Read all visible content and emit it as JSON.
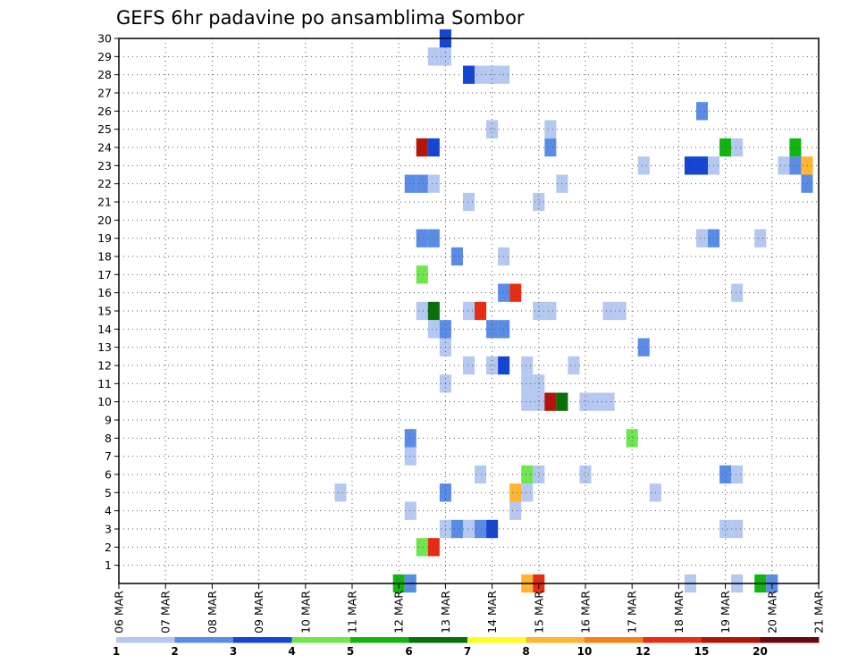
{
  "chart_data": {
    "type": "heatmap",
    "title": "GEFS 6hr padavine po ansamblima Sombor",
    "xlabel": "",
    "ylabel": "",
    "x_tick_labels": [
      "06 MAR",
      "07 MAR",
      "08 MAR",
      "09 MAR",
      "10 MAR",
      "11 MAR",
      "12 MAR",
      "13 MAR",
      "14 MAR",
      "15 MAR",
      "16 MAR",
      "17 MAR",
      "18 MAR",
      "19 MAR",
      "20 MAR",
      "21 MAR"
    ],
    "y_tick_labels": [
      "1",
      "2",
      "3",
      "4",
      "5",
      "6",
      "7",
      "8",
      "9",
      "10",
      "11",
      "12",
      "13",
      "14",
      "15",
      "16",
      "17",
      "18",
      "19",
      "20",
      "21",
      "22",
      "23",
      "24",
      "25",
      "26",
      "27",
      "28",
      "29",
      "30"
    ],
    "x_unit": "6-hour step from 06 MAR 00Z",
    "xlim": [
      0,
      60
    ],
    "ylim": [
      0,
      30
    ],
    "grid": true,
    "colorbar": {
      "labels": [
        "1",
        "2",
        "3",
        "4",
        "5",
        "6",
        "7",
        "8",
        "10",
        "12",
        "15",
        "20"
      ],
      "colors": [
        "#b4c8f0",
        "#5a8ce6",
        "#1446d2",
        "#6ee650",
        "#12b412",
        "#0a6e0a",
        "#ffff1e",
        "#ffb432",
        "#f58214",
        "#e62d14",
        "#b4140a",
        "#640a0a"
      ]
    },
    "cells": [
      {
        "t": 49,
        "m": 0,
        "c": 1
      },
      {
        "t": 53,
        "m": 0,
        "c": 1
      },
      {
        "t": 55,
        "m": 0,
        "c": 5
      },
      {
        "t": 56,
        "m": 0,
        "c": 2
      },
      {
        "t": 24,
        "m": 0,
        "c": 5
      },
      {
        "t": 25,
        "m": 0,
        "c": 2
      },
      {
        "t": 35,
        "m": 0,
        "c": 8
      },
      {
        "t": 36,
        "m": 0,
        "c": 10
      },
      {
        "t": 26,
        "m": 2,
        "c": 4
      },
      {
        "t": 27,
        "m": 2,
        "c": 10
      },
      {
        "t": 28,
        "m": 3,
        "c": 1
      },
      {
        "t": 29,
        "m": 3,
        "c": 2
      },
      {
        "t": 30,
        "m": 3,
        "c": 1
      },
      {
        "t": 31,
        "m": 3,
        "c": 2
      },
      {
        "t": 32,
        "m": 3,
        "c": 3
      },
      {
        "t": 52,
        "m": 3,
        "c": 1
      },
      {
        "t": 53,
        "m": 3,
        "c": 1
      },
      {
        "t": 25,
        "m": 4,
        "c": 1
      },
      {
        "t": 34,
        "m": 4,
        "c": 1
      },
      {
        "t": 19,
        "m": 5,
        "c": 1
      },
      {
        "t": 28,
        "m": 5,
        "c": 2
      },
      {
        "t": 34,
        "m": 5,
        "c": 8
      },
      {
        "t": 35,
        "m": 5,
        "c": 1
      },
      {
        "t": 46,
        "m": 5,
        "c": 1
      },
      {
        "t": 31,
        "m": 6,
        "c": 1
      },
      {
        "t": 35,
        "m": 6,
        "c": 4
      },
      {
        "t": 36,
        "m": 6,
        "c": 1
      },
      {
        "t": 40,
        "m": 6,
        "c": 1
      },
      {
        "t": 52,
        "m": 6,
        "c": 2
      },
      {
        "t": 53,
        "m": 6,
        "c": 1
      },
      {
        "t": 25,
        "m": 7,
        "c": 1
      },
      {
        "t": 25,
        "m": 8,
        "c": 2
      },
      {
        "t": 44,
        "m": 8,
        "c": 4
      },
      {
        "t": 35,
        "m": 10,
        "c": 1
      },
      {
        "t": 36,
        "m": 10,
        "c": 1
      },
      {
        "t": 37,
        "m": 10,
        "c": 11
      },
      {
        "t": 38,
        "m": 10,
        "c": 6
      },
      {
        "t": 40,
        "m": 10,
        "c": 1
      },
      {
        "t": 41,
        "m": 10,
        "c": 1
      },
      {
        "t": 42,
        "m": 10,
        "c": 1
      },
      {
        "t": 28,
        "m": 11,
        "c": 1
      },
      {
        "t": 35,
        "m": 11,
        "c": 1
      },
      {
        "t": 36,
        "m": 11,
        "c": 1
      },
      {
        "t": 30,
        "m": 12,
        "c": 1
      },
      {
        "t": 32,
        "m": 12,
        "c": 1
      },
      {
        "t": 33,
        "m": 12,
        "c": 3
      },
      {
        "t": 35,
        "m": 12,
        "c": 1
      },
      {
        "t": 39,
        "m": 12,
        "c": 1
      },
      {
        "t": 28,
        "m": 13,
        "c": 1
      },
      {
        "t": 45,
        "m": 13,
        "c": 2
      },
      {
        "t": 27,
        "m": 14,
        "c": 1
      },
      {
        "t": 28,
        "m": 14,
        "c": 2
      },
      {
        "t": 32,
        "m": 14,
        "c": 2
      },
      {
        "t": 33,
        "m": 14,
        "c": 2
      },
      {
        "t": 26,
        "m": 15,
        "c": 1
      },
      {
        "t": 27,
        "m": 15,
        "c": 6
      },
      {
        "t": 30,
        "m": 15,
        "c": 1
      },
      {
        "t": 31,
        "m": 15,
        "c": 10
      },
      {
        "t": 36,
        "m": 15,
        "c": 1
      },
      {
        "t": 37,
        "m": 15,
        "c": 1
      },
      {
        "t": 42,
        "m": 15,
        "c": 1
      },
      {
        "t": 43,
        "m": 15,
        "c": 1
      },
      {
        "t": 33,
        "m": 16,
        "c": 2
      },
      {
        "t": 34,
        "m": 16,
        "c": 10
      },
      {
        "t": 53,
        "m": 16,
        "c": 1
      },
      {
        "t": 26,
        "m": 17,
        "c": 4
      },
      {
        "t": 29,
        "m": 18,
        "c": 2
      },
      {
        "t": 33,
        "m": 18,
        "c": 1
      },
      {
        "t": 26,
        "m": 19,
        "c": 2
      },
      {
        "t": 27,
        "m": 19,
        "c": 2
      },
      {
        "t": 50,
        "m": 19,
        "c": 1
      },
      {
        "t": 51,
        "m": 19,
        "c": 2
      },
      {
        "t": 55,
        "m": 19,
        "c": 1
      },
      {
        "t": 30,
        "m": 21,
        "c": 1
      },
      {
        "t": 36,
        "m": 21,
        "c": 1
      },
      {
        "t": 25,
        "m": 22,
        "c": 2
      },
      {
        "t": 26,
        "m": 22,
        "c": 2
      },
      {
        "t": 27,
        "m": 22,
        "c": 1
      },
      {
        "t": 38,
        "m": 22,
        "c": 1
      },
      {
        "t": 59,
        "m": 22,
        "c": 2
      },
      {
        "t": 45,
        "m": 23,
        "c": 1
      },
      {
        "t": 49,
        "m": 23,
        "c": 3
      },
      {
        "t": 50,
        "m": 23,
        "c": 3
      },
      {
        "t": 51,
        "m": 23,
        "c": 1
      },
      {
        "t": 57,
        "m": 23,
        "c": 1
      },
      {
        "t": 58,
        "m": 23,
        "c": 2
      },
      {
        "t": 59,
        "m": 23,
        "c": 8
      },
      {
        "t": 26,
        "m": 24,
        "c": 11
      },
      {
        "t": 27,
        "m": 24,
        "c": 3
      },
      {
        "t": 37,
        "m": 24,
        "c": 2
      },
      {
        "t": 52,
        "m": 24,
        "c": 5
      },
      {
        "t": 53,
        "m": 24,
        "c": 1
      },
      {
        "t": 58,
        "m": 24,
        "c": 5
      },
      {
        "t": 32,
        "m": 25,
        "c": 1
      },
      {
        "t": 37,
        "m": 25,
        "c": 1
      },
      {
        "t": 50,
        "m": 26,
        "c": 2
      },
      {
        "t": 30,
        "m": 28,
        "c": 3
      },
      {
        "t": 31,
        "m": 28,
        "c": 1
      },
      {
        "t": 32,
        "m": 28,
        "c": 1
      },
      {
        "t": 33,
        "m": 28,
        "c": 1
      },
      {
        "t": 27,
        "m": 29,
        "c": 1
      },
      {
        "t": 28,
        "m": 29,
        "c": 1
      },
      {
        "t": 28,
        "m": 30,
        "c": 3
      }
    ]
  }
}
